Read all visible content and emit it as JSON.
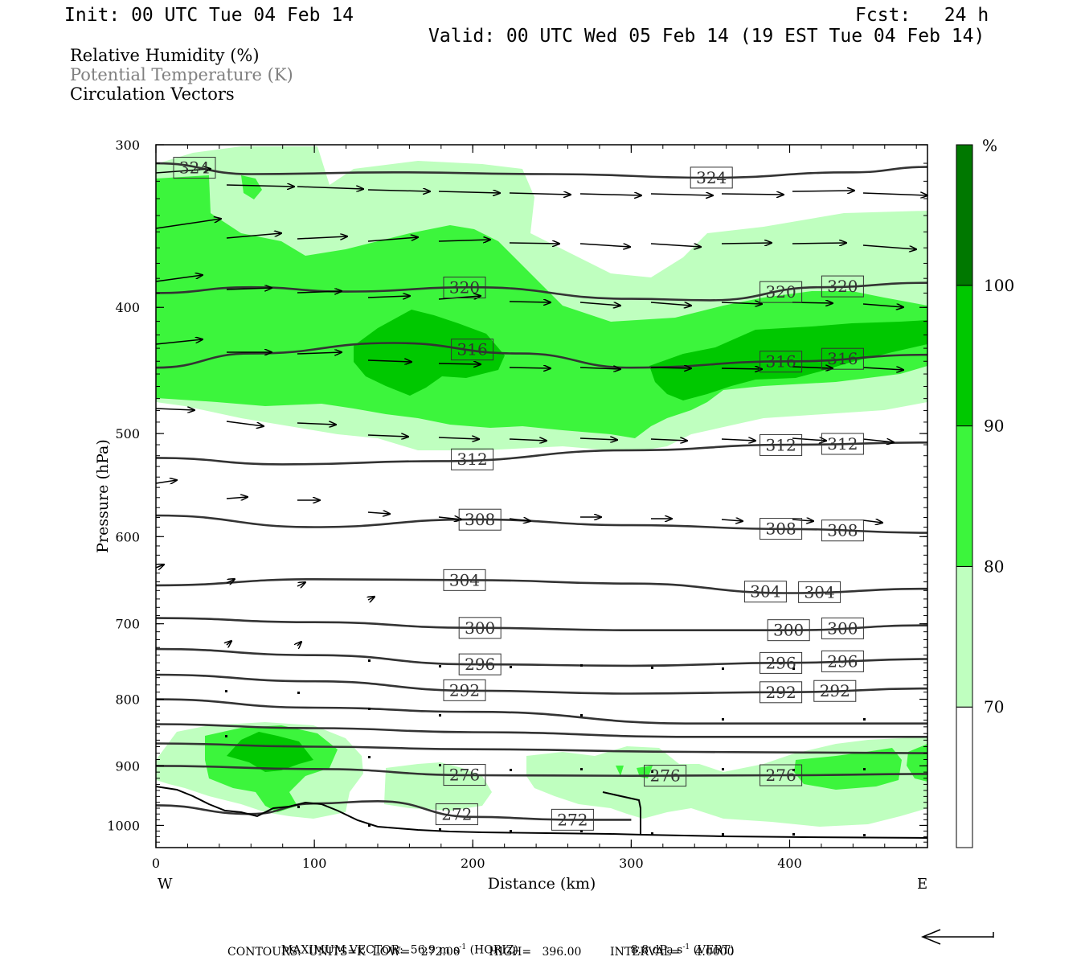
{
  "header": {
    "init": "Init: 00 UTC Tue 04 Feb 14",
    "fcst": "Fcst:   24 h",
    "valid": "Valid: 00 UTC Wed 05 Feb 14 (19 EST Tue 04 Feb 14)"
  },
  "legend": {
    "line1": "Relative Humidity (%)",
    "line2": "Potential Temperature (K)",
    "line3": "Circulation Vectors",
    "line2_color": "#808080"
  },
  "footer": {
    "max_vector_label": "MAXIMUM VECTOR:",
    "horiz_value": "56.9",
    "horiz_unit": "m s",
    "horiz_exp": "-1",
    "horiz_tag": "(HORIZ)",
    "vert_value": "8.8",
    "vert_unit": "dPa s",
    "vert_exp": "-1",
    "vert_tag": "(VERT)",
    "contours": "CONTOURS:  UNITS=K  LOW=   272.00        HIGH=   396.00        INTERVAL=    4.0000"
  },
  "chart_data": {
    "type": "heatmap",
    "xlabel": "Distance (km)",
    "ylabel": "Pressure (hPa)",
    "xlim": [
      0,
      487
    ],
    "ylim": [
      1040,
      300
    ],
    "y_scale": "log-pressure (inverted)",
    "x_ticks": [
      0,
      100,
      200,
      300,
      400
    ],
    "y_ticks": [
      300,
      400,
      500,
      600,
      700,
      800,
      900,
      1000
    ],
    "x_end_labels": {
      "left": "W",
      "right": "E"
    },
    "colorbar": {
      "unit": "%",
      "levels": [
        70,
        80,
        90,
        100
      ],
      "colors": [
        "#ffffff",
        "#bfffbf",
        "#3cf53c",
        "#00c800",
        "#007800"
      ]
    },
    "theta_contours": [
      {
        "value": 324,
        "labels": [
          "324",
          "324"
        ],
        "points": [
          [
            0,
            310
          ],
          [
            60,
            316
          ],
          [
            150,
            315
          ],
          [
            250,
            316
          ],
          [
            350,
            318
          ],
          [
            440,
            315
          ],
          [
            487,
            312
          ]
        ]
      },
      {
        "value": 320,
        "labels": [
          "320",
          "320",
          "320"
        ],
        "points": [
          [
            0,
            390
          ],
          [
            60,
            386
          ],
          [
            120,
            389
          ],
          [
            200,
            386
          ],
          [
            300,
            394
          ],
          [
            350,
            395
          ],
          [
            420,
            386
          ],
          [
            487,
            383
          ]
        ]
      },
      {
        "value": 316,
        "labels": [
          "316",
          "316",
          "316"
        ],
        "points": [
          [
            0,
            445
          ],
          [
            60,
            434
          ],
          [
            150,
            426
          ],
          [
            230,
            434
          ],
          [
            300,
            445
          ],
          [
            400,
            440
          ],
          [
            487,
            435
          ]
        ]
      },
      {
        "value": 312,
        "labels": [
          "312",
          "312",
          "312"
        ],
        "points": [
          [
            0,
            522
          ],
          [
            80,
            528
          ],
          [
            180,
            525
          ],
          [
            300,
            515
          ],
          [
            400,
            510
          ],
          [
            487,
            508
          ]
        ]
      },
      {
        "value": 308,
        "labels": [
          "308",
          "308",
          "308"
        ],
        "points": [
          [
            0,
            578
          ],
          [
            100,
            590
          ],
          [
            200,
            582
          ],
          [
            300,
            588
          ],
          [
            400,
            592
          ],
          [
            487,
            596
          ]
        ]
      },
      {
        "value": 304,
        "labels": [
          "304",
          "304",
          "304"
        ],
        "points": [
          [
            0,
            654
          ],
          [
            100,
            647
          ],
          [
            200,
            648
          ],
          [
            300,
            652
          ],
          [
            400,
            663
          ],
          [
            487,
            658
          ]
        ]
      },
      {
        "value": 300,
        "labels": [
          "300",
          "300",
          "300"
        ],
        "points": [
          [
            0,
            693
          ],
          [
            100,
            698
          ],
          [
            200,
            705
          ],
          [
            300,
            708
          ],
          [
            400,
            708
          ],
          [
            487,
            702
          ]
        ]
      },
      {
        "value": 296,
        "labels": [
          "296",
          "296",
          "296"
        ],
        "points": [
          [
            0,
            732
          ],
          [
            100,
            740
          ],
          [
            200,
            752
          ],
          [
            300,
            754
          ],
          [
            400,
            750
          ],
          [
            487,
            745
          ]
        ]
      },
      {
        "value": 292,
        "labels": [
          "292",
          "292",
          "292"
        ],
        "points": [
          [
            0,
            766
          ],
          [
            100,
            775
          ],
          [
            200,
            788
          ],
          [
            300,
            792
          ],
          [
            400,
            790
          ],
          [
            487,
            785
          ]
        ]
      },
      {
        "value": 288,
        "labels": [],
        "points": [
          [
            0,
            800
          ],
          [
            100,
            812
          ],
          [
            200,
            818
          ],
          [
            340,
            835
          ],
          [
            487,
            835
          ]
        ]
      },
      {
        "value": 284,
        "labels": [],
        "points": [
          [
            0,
            836
          ],
          [
            100,
            842
          ],
          [
            200,
            848
          ],
          [
            340,
            855
          ],
          [
            487,
            855
          ]
        ]
      },
      {
        "value": 280,
        "labels": [],
        "points": [
          [
            0,
            865
          ],
          [
            100,
            870
          ],
          [
            200,
            874
          ],
          [
            340,
            878
          ],
          [
            487,
            880
          ]
        ]
      },
      {
        "value": 276,
        "labels": [
          "276",
          "276",
          "276"
        ],
        "points": [
          [
            0,
            900
          ],
          [
            100,
            905
          ],
          [
            200,
            915
          ],
          [
            300,
            916
          ],
          [
            400,
            915
          ],
          [
            487,
            913
          ]
        ]
      },
      {
        "value": 272,
        "labels": [
          "272",
          "272"
        ],
        "points": [
          [
            0,
            965
          ],
          [
            60,
            980
          ],
          [
            100,
            962
          ],
          [
            140,
            958
          ],
          [
            200,
            985
          ],
          [
            260,
            990
          ],
          [
            300,
            990
          ]
        ]
      }
    ],
    "vectors_note": "Circulation vectors: westerly flow, strongest 350–500 hPa, weakening toward the surface",
    "max_vector": {
      "horiz": 56.9,
      "horiz_unit": "m s-1",
      "vert": 8.8,
      "vert_unit": "dPa s-1"
    },
    "contour_info": {
      "units": "K",
      "low": 272.0,
      "high": 396.0,
      "interval": 4.0
    }
  }
}
